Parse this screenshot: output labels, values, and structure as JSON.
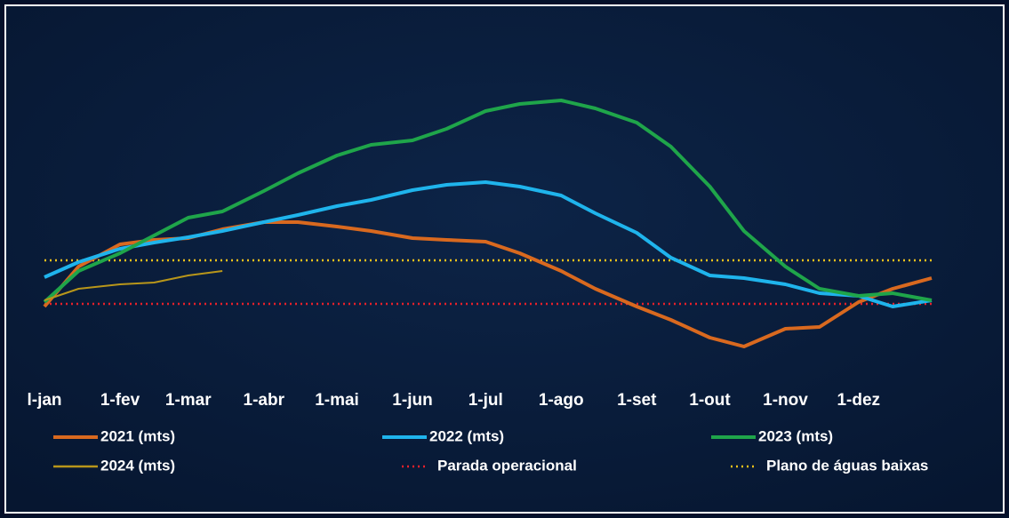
{
  "chart_data": {
    "type": "line",
    "x": [
      1,
      15,
      32,
      46,
      60,
      74,
      91,
      105,
      121,
      135,
      152,
      166,
      182,
      196,
      213,
      227,
      244,
      258,
      274,
      288,
      305,
      319,
      335,
      349,
      365
    ],
    "xlim": [
      1,
      365
    ],
    "xticks": [
      {
        "value": 1,
        "label": "l-jan"
      },
      {
        "value": 32,
        "label": "1-fev"
      },
      {
        "value": 60,
        "label": "1-mar"
      },
      {
        "value": 91,
        "label": "1-abr"
      },
      {
        "value": 121,
        "label": "1-mai"
      },
      {
        "value": 152,
        "label": "1-jun"
      },
      {
        "value": 182,
        "label": "1-jul"
      },
      {
        "value": 213,
        "label": "1-ago"
      },
      {
        "value": 244,
        "label": "1-set"
      },
      {
        "value": 274,
        "label": "1-out"
      },
      {
        "value": 305,
        "label": "1-nov"
      },
      {
        "value": 335,
        "label": "1-dez"
      }
    ],
    "ylim": [
      0,
      20
    ],
    "grid": false,
    "series": [
      {
        "name": "2021 (mts)",
        "color": "#d9691f",
        "values": [
          4.25,
          6.5,
          7.75,
          8.0,
          8.1,
          8.6,
          9.0,
          9.0,
          8.75,
          8.5,
          8.1,
          8.0,
          7.9,
          7.25,
          6.25,
          5.25,
          4.25,
          3.5,
          2.5,
          2.0,
          3.0,
          3.1,
          4.5,
          5.25,
          5.85
        ]
      },
      {
        "name": "2022 (mts)",
        "color": "#1fb4ec",
        "values": [
          5.9,
          6.75,
          7.5,
          7.85,
          8.15,
          8.5,
          9.0,
          9.4,
          9.9,
          10.25,
          10.8,
          11.1,
          11.25,
          11.0,
          10.5,
          9.5,
          8.4,
          7.0,
          6.0,
          5.85,
          5.5,
          5.0,
          4.85,
          4.25,
          4.6
        ]
      },
      {
        "name": "2023 (mts)",
        "color": "#1fa54a",
        "values": [
          4.5,
          6.25,
          7.25,
          8.25,
          9.25,
          9.6,
          10.75,
          11.75,
          12.75,
          13.35,
          13.6,
          14.25,
          15.25,
          15.65,
          15.85,
          15.4,
          14.6,
          13.25,
          11.0,
          8.5,
          6.5,
          5.25,
          4.85,
          5.0,
          4.6
        ]
      },
      {
        "name": "2024 (mts)",
        "color": "#b8961a",
        "values": [
          4.6,
          5.25,
          5.5,
          5.6,
          6.0,
          6.25,
          null,
          null,
          null,
          null,
          null,
          null,
          null,
          null,
          null,
          null,
          null,
          null,
          null,
          null,
          null,
          null,
          null,
          null,
          null
        ]
      }
    ],
    "reference_lines": [
      {
        "name": "Parada operacional",
        "color": "#e8202a",
        "value": 4.4
      },
      {
        "name": "Plano de águas baixas",
        "color": "#f2c21b",
        "value": 6.85
      }
    ]
  }
}
